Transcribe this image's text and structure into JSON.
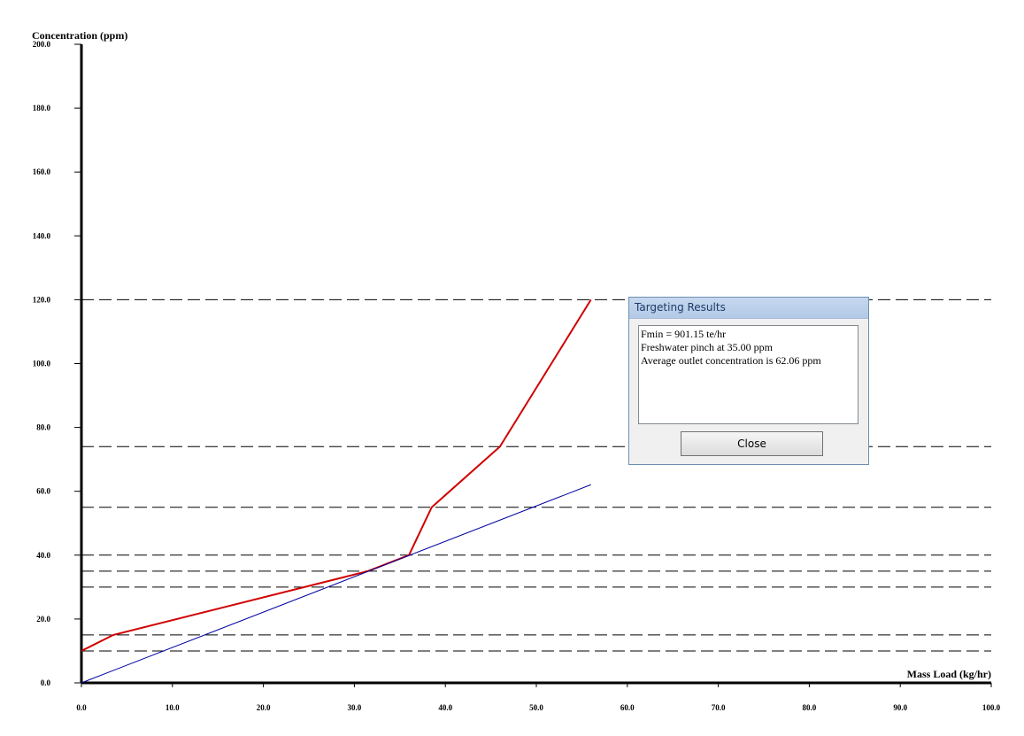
{
  "chart_data": {
    "type": "line",
    "title": "",
    "ylabel": "Concentration (ppm)",
    "xlabel": "Mass Load (kg/hr)",
    "xlim": [
      0,
      100
    ],
    "ylim": [
      0,
      200
    ],
    "x_ticks": [
      "0.0",
      "10.0",
      "20.0",
      "30.0",
      "40.0",
      "50.0",
      "60.0",
      "70.0",
      "80.0",
      "90.0",
      "100.0"
    ],
    "y_ticks": [
      "0.0",
      "20.0",
      "40.0",
      "60.0",
      "80.0",
      "100.0",
      "120.0",
      "140.0",
      "160.0",
      "180.0",
      "200.0"
    ],
    "grid": false,
    "reference_lines_y": [
      10,
      15,
      30,
      35,
      40,
      55,
      74,
      120
    ],
    "series": [
      {
        "color": "#d00000",
        "points": [
          [
            0,
            10
          ],
          [
            3.5,
            15
          ],
          [
            31.5,
            35
          ],
          [
            36,
            40
          ],
          [
            38.5,
            55
          ],
          [
            46,
            74
          ],
          [
            56,
            120
          ]
        ]
      },
      {
        "color": "#0000a0",
        "points": [
          [
            0,
            0
          ],
          [
            56,
            62.06
          ]
        ]
      }
    ]
  },
  "dialog": {
    "title": "Targeting Results",
    "lines": [
      "Fmin = 901.15 te/hr",
      "Freshwater pinch at 35.00 ppm",
      "Average outlet concentration is 62.06 ppm"
    ],
    "close_label": "Close"
  }
}
